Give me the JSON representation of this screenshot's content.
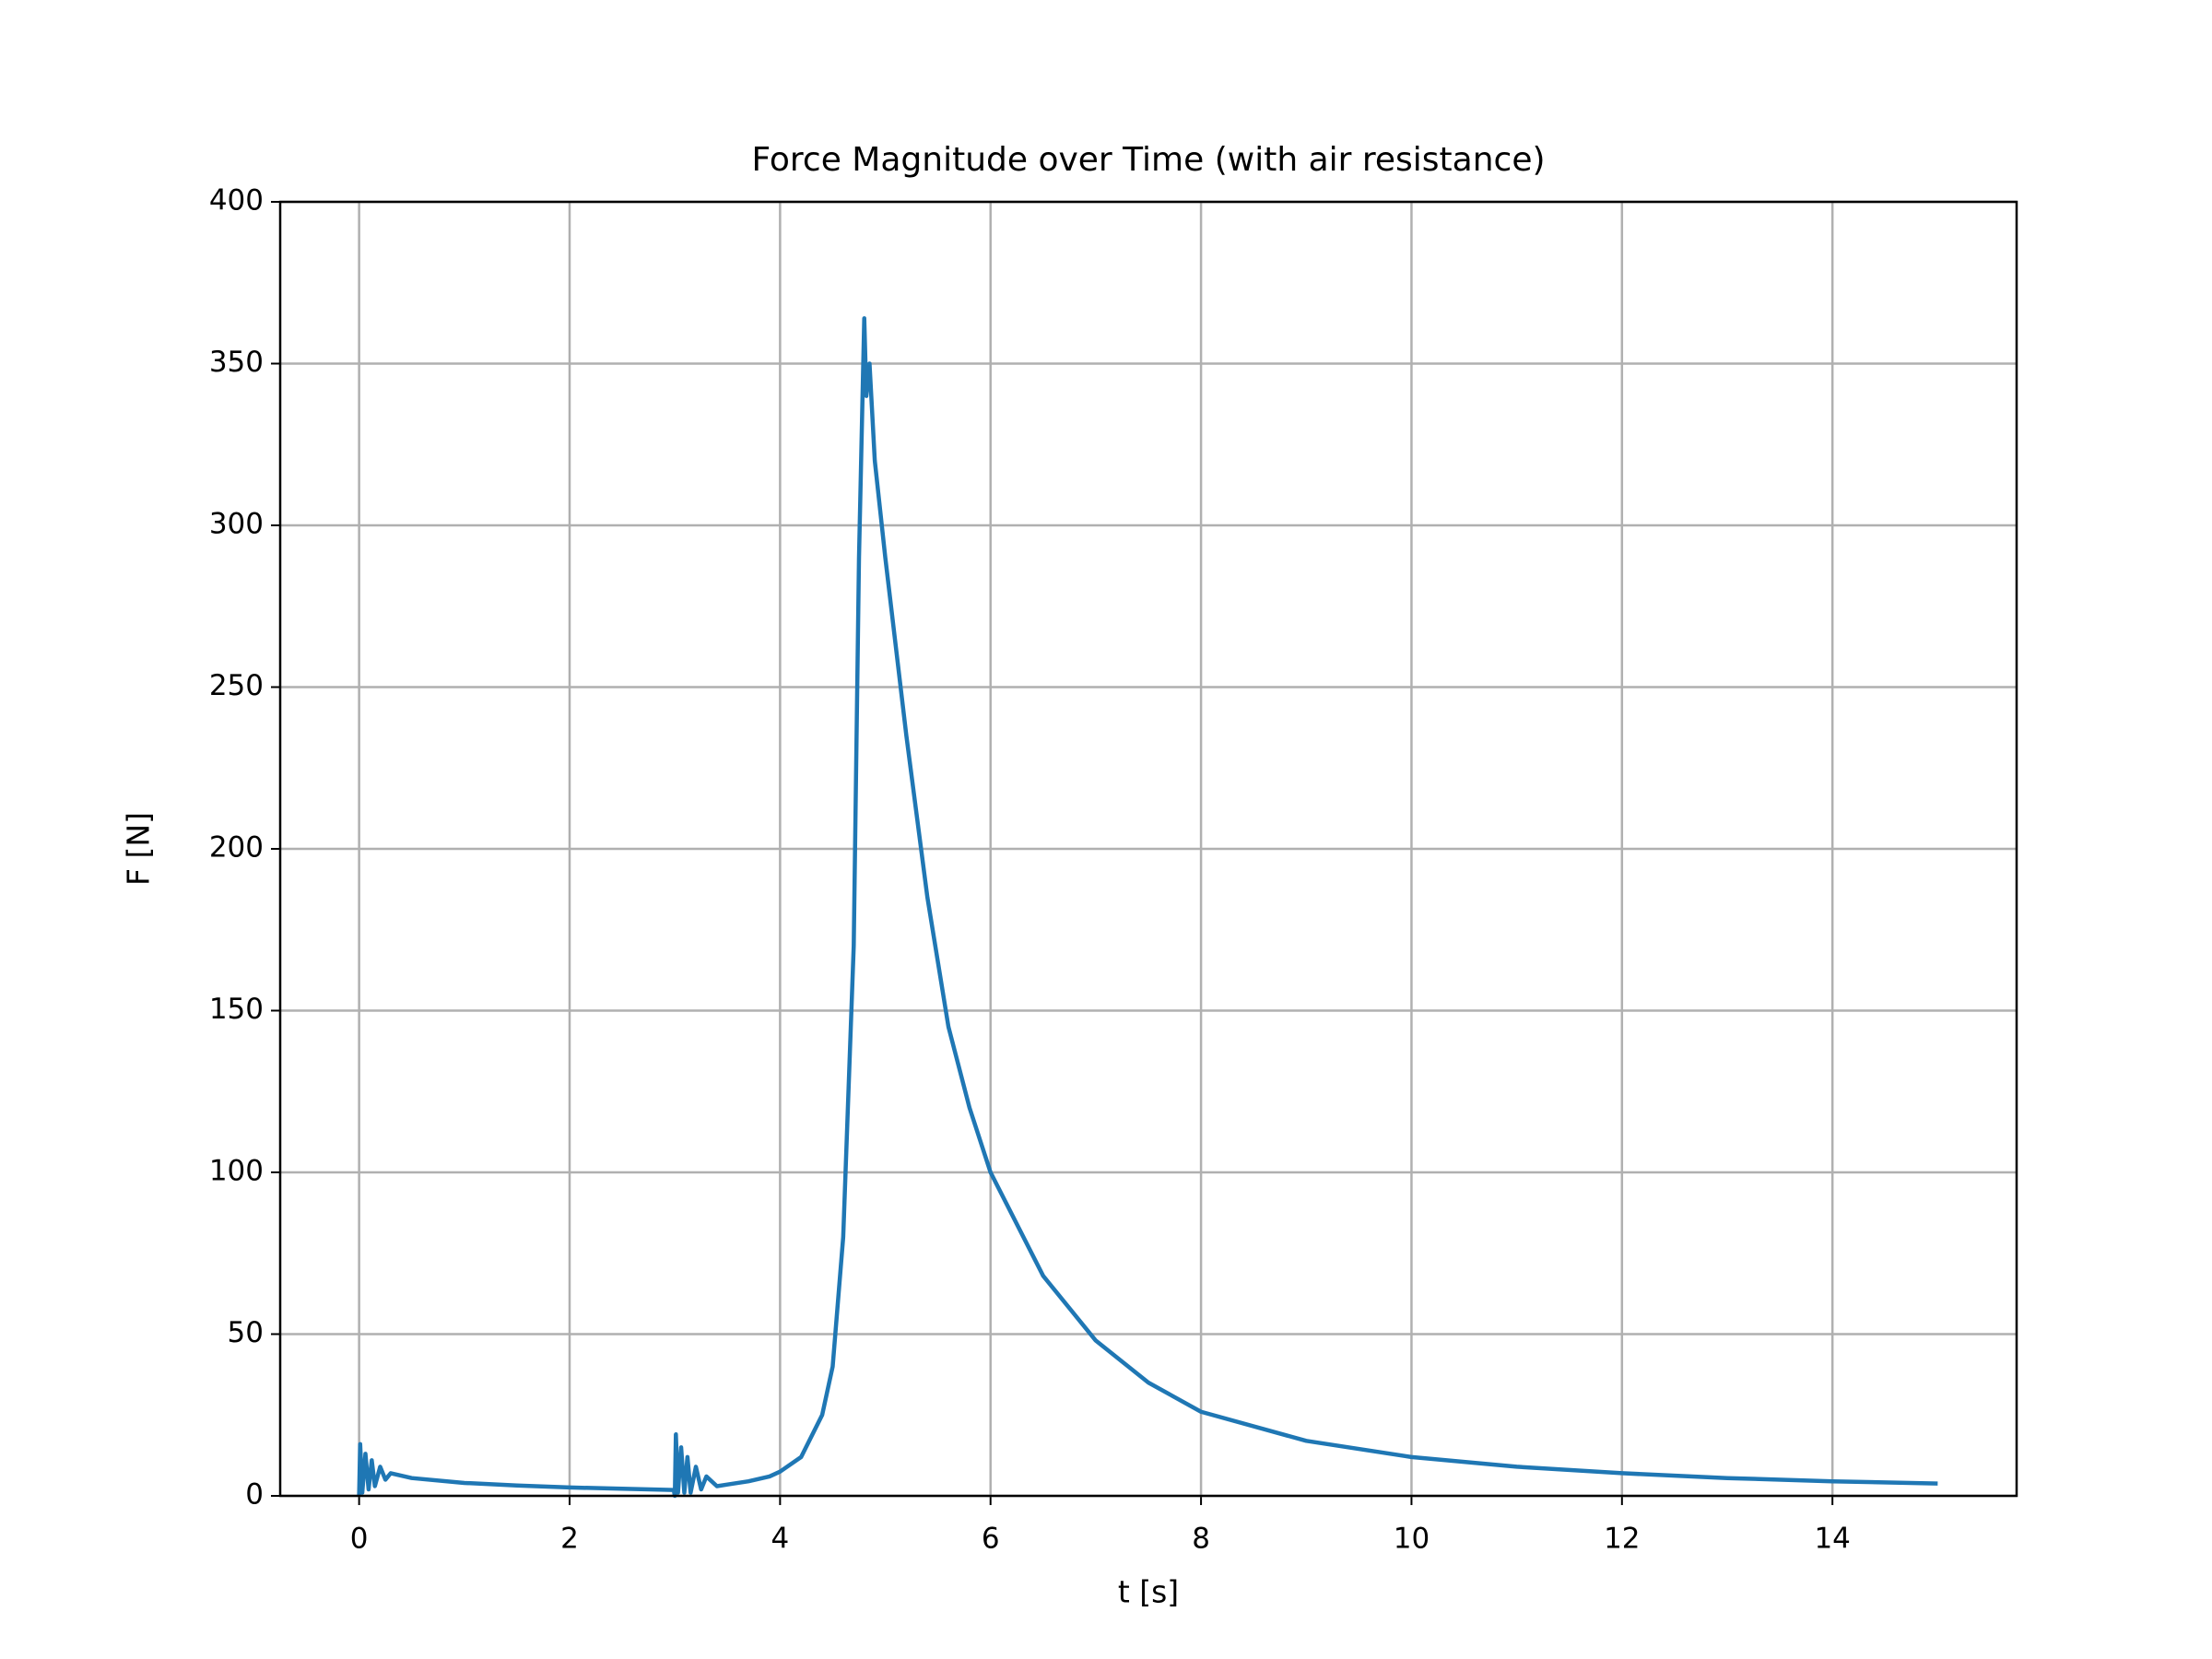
{
  "chart_data": {
    "type": "line",
    "title": "Force Magnitude over Time (with air resistance)",
    "x_label": "t [s]",
    "y_label": "F [N]",
    "xlim": [
      -0.75,
      15.75
    ],
    "ylim": [
      0,
      400
    ],
    "xticks": [
      0,
      2,
      4,
      6,
      8,
      10,
      12,
      14
    ],
    "yticks": [
      0,
      50,
      100,
      150,
      200,
      250,
      300,
      350,
      400
    ],
    "grid": true,
    "series": [
      {
        "color": "#1f77b4",
        "x": [
          0,
          0.01,
          0.03,
          0.06,
          0.09,
          0.12,
          0.15,
          0.2,
          0.25,
          0.3,
          0.5,
          1,
          1.5,
          2,
          2.5,
          2.99,
          3,
          3.01,
          3.03,
          3.06,
          3.09,
          3.12,
          3.15,
          3.2,
          3.25,
          3.3,
          3.4,
          3.5,
          3.7,
          3.9,
          4,
          4.2,
          4.4,
          4.5,
          4.6,
          4.7,
          4.75,
          4.8,
          4.82,
          4.85,
          4.9,
          5,
          5.2,
          5.4,
          5.6,
          5.8,
          6,
          6.5,
          7,
          7.5,
          8,
          9,
          10,
          11,
          12,
          13,
          14,
          15
        ],
        "values": [
          0,
          16,
          1,
          13,
          2,
          11,
          3,
          9,
          5,
          7,
          5.5,
          4,
          3.2,
          2.6,
          2.2,
          1.8,
          0,
          19,
          1,
          15,
          1,
          12,
          1,
          9,
          2,
          6,
          3,
          3.5,
          4.5,
          6,
          7.5,
          12,
          25,
          40,
          80,
          170,
          290,
          364,
          340,
          350,
          320,
          290,
          235,
          185,
          145,
          120,
          100,
          68,
          48,
          35,
          26,
          17,
          12,
          9,
          7,
          5.5,
          4.5,
          3.8
        ]
      }
    ]
  }
}
